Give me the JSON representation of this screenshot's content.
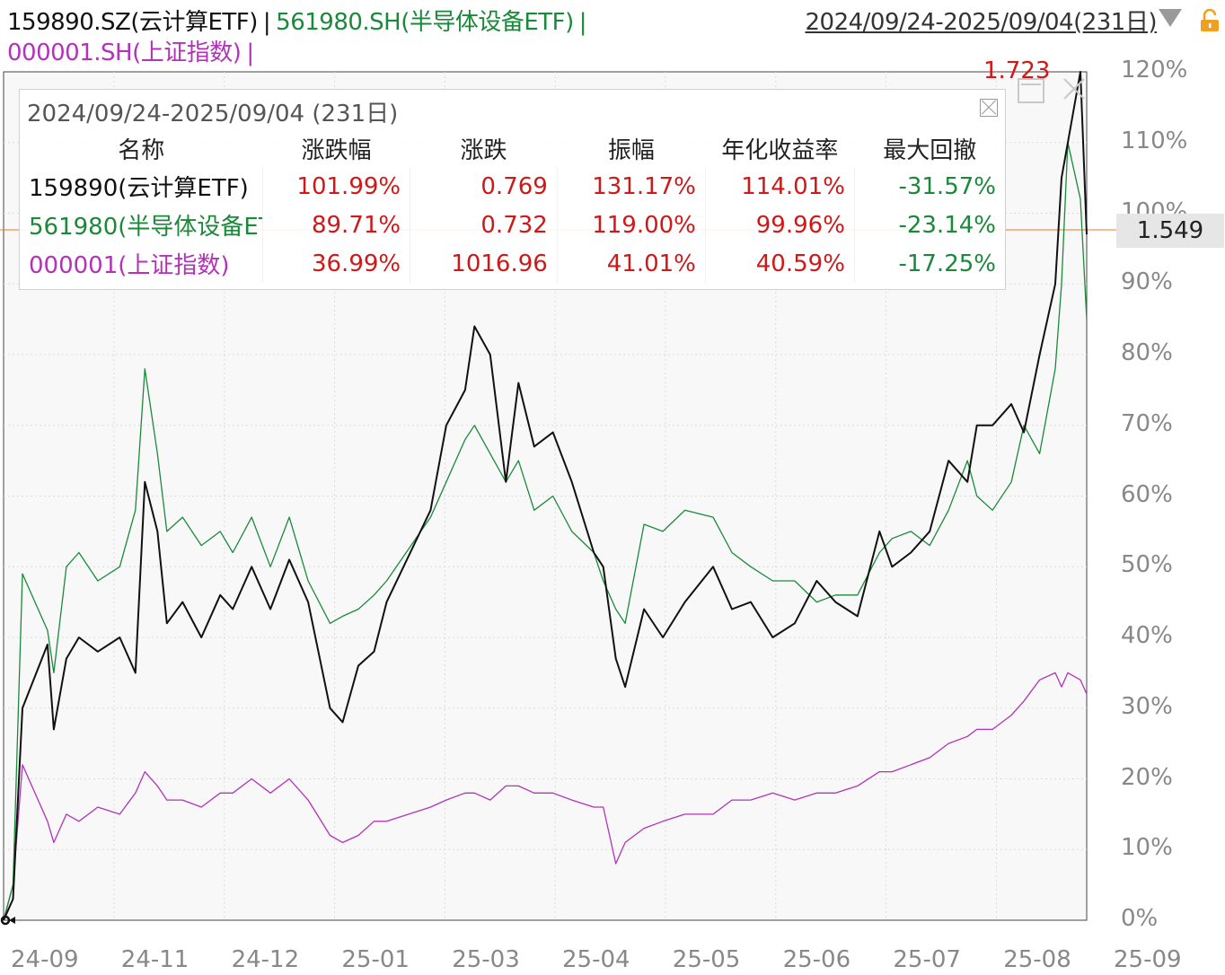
{
  "header": {
    "series_legend": [
      {
        "label": "159890.SZ(云计算ETF)",
        "color": "#111111"
      },
      {
        "label": "561980.SH(半导体设备ETF)",
        "color": "#1a8a3a"
      },
      {
        "label": "000001.SH(上证指数)",
        "color": "#b233b8"
      }
    ],
    "separator": "|",
    "date_range": "2024/09/24-2025/09/04(231日)"
  },
  "stats_panel": {
    "title": "2024/09/24-2025/09/04 (231日)",
    "columns": [
      "名称",
      "涨跌幅",
      "涨跌",
      "振幅",
      "年化收益率",
      "最大回撤"
    ],
    "rows": [
      {
        "name": "159890(云计算ETF)",
        "change_pct": "101.99%",
        "change": "0.769",
        "amplitude": "131.17%",
        "annualized": "114.01%",
        "max_drawdown": "-31.57%"
      },
      {
        "name": "561980(半导体设备ETF)",
        "change_pct": "89.71%",
        "change": "0.732",
        "amplitude": "119.00%",
        "annualized": "99.96%",
        "max_drawdown": "-23.14%"
      },
      {
        "name": "000001(上证指数)",
        "change_pct": "36.99%",
        "change": "1016.96",
        "amplitude": "41.01%",
        "annualized": "40.59%",
        "max_drawdown": "-17.25%"
      }
    ]
  },
  "markers": {
    "max_price": "1.723",
    "current_price": "1.549"
  },
  "colors": {
    "up": "#d01818",
    "down": "#1a8a3a",
    "black_series": "#111111",
    "green_series": "#1a8a3a",
    "magenta_series": "#b233b8"
  },
  "chart_data": {
    "type": "line",
    "y_tick_labels": [
      "0%",
      "10%",
      "20%",
      "30%",
      "40%",
      "50%",
      "60%",
      "70%",
      "80%",
      "90%",
      "100%",
      "110%",
      "120%"
    ],
    "x_tick_labels": [
      "24-09",
      "24-11",
      "24-12",
      "25-01",
      "25-03",
      "25-04",
      "25-05",
      "25-06",
      "25-07",
      "25-08",
      "25-09"
    ],
    "ylim": [
      0,
      120
    ],
    "x_range": [
      "2024-09-24",
      "2025-09-04"
    ],
    "grid": true,
    "reference_line_pct": 97,
    "series": [
      {
        "name": "159890.SZ(云计算ETF)",
        "color": "#111111",
        "x": [
          "2024-09-24",
          "2024-09-27",
          "2024-09-30",
          "2024-10-08",
          "2024-10-10",
          "2024-10-14",
          "2024-10-18",
          "2024-10-24",
          "2024-10-31",
          "2024-11-05",
          "2024-11-08",
          "2024-11-12",
          "2024-11-15",
          "2024-11-20",
          "2024-11-26",
          "2024-12-02",
          "2024-12-06",
          "2024-12-12",
          "2024-12-18",
          "2024-12-24",
          "2024-12-30",
          "2025-01-06",
          "2025-01-10",
          "2025-01-15",
          "2025-01-20",
          "2025-01-24",
          "2025-02-07",
          "2025-02-12",
          "2025-02-18",
          "2025-02-21",
          "2025-02-26",
          "2025-03-03",
          "2025-03-07",
          "2025-03-12",
          "2025-03-18",
          "2025-03-24",
          "2025-03-31",
          "2025-04-03",
          "2025-04-07",
          "2025-04-10",
          "2025-04-16",
          "2025-04-22",
          "2025-04-29",
          "2025-05-08",
          "2025-05-14",
          "2025-05-20",
          "2025-05-27",
          "2025-06-03",
          "2025-06-10",
          "2025-06-16",
          "2025-06-23",
          "2025-06-30",
          "2025-07-04",
          "2025-07-10",
          "2025-07-16",
          "2025-07-22",
          "2025-07-28",
          "2025-07-31",
          "2025-08-05",
          "2025-08-11",
          "2025-08-15",
          "2025-08-20",
          "2025-08-25",
          "2025-08-27",
          "2025-08-29",
          "2025-09-02",
          "2025-09-04"
        ],
        "y": [
          0,
          3,
          30,
          39,
          27,
          37,
          40,
          38,
          40,
          35,
          62,
          55,
          42,
          45,
          40,
          46,
          44,
          50,
          44,
          51,
          45,
          30,
          28,
          36,
          38,
          45,
          58,
          70,
          75,
          84,
          80,
          62,
          76,
          67,
          69,
          62,
          52,
          50,
          37,
          33,
          44,
          40,
          45,
          50,
          44,
          45,
          40,
          42,
          48,
          45,
          43,
          55,
          50,
          52,
          55,
          65,
          62,
          70,
          70,
          73,
          69,
          80,
          90,
          105,
          110,
          120,
          97
        ]
      },
      {
        "name": "561980.SH(半导体设备ETF)",
        "color": "#1a8a3a",
        "x": [
          "2024-09-24",
          "2024-09-27",
          "2024-09-30",
          "2024-10-08",
          "2024-10-10",
          "2024-10-14",
          "2024-10-18",
          "2024-10-24",
          "2024-10-31",
          "2024-11-05",
          "2024-11-08",
          "2024-11-12",
          "2024-11-15",
          "2024-11-20",
          "2024-11-26",
          "2024-12-02",
          "2024-12-06",
          "2024-12-12",
          "2024-12-18",
          "2024-12-24",
          "2024-12-30",
          "2025-01-06",
          "2025-01-10",
          "2025-01-15",
          "2025-01-20",
          "2025-01-24",
          "2025-02-07",
          "2025-02-12",
          "2025-02-18",
          "2025-02-21",
          "2025-02-26",
          "2025-03-03",
          "2025-03-07",
          "2025-03-12",
          "2025-03-18",
          "2025-03-24",
          "2025-03-31",
          "2025-04-03",
          "2025-04-07",
          "2025-04-10",
          "2025-04-16",
          "2025-04-22",
          "2025-04-29",
          "2025-05-08",
          "2025-05-14",
          "2025-05-20",
          "2025-05-27",
          "2025-06-03",
          "2025-06-10",
          "2025-06-16",
          "2025-06-23",
          "2025-06-30",
          "2025-07-04",
          "2025-07-10",
          "2025-07-16",
          "2025-07-22",
          "2025-07-28",
          "2025-07-31",
          "2025-08-05",
          "2025-08-11",
          "2025-08-15",
          "2025-08-20",
          "2025-08-25",
          "2025-08-27",
          "2025-08-29",
          "2025-09-02",
          "2025-09-04"
        ],
        "y": [
          0,
          5,
          49,
          41,
          35,
          50,
          52,
          48,
          50,
          58,
          78,
          66,
          55,
          57,
          53,
          55,
          52,
          57,
          50,
          57,
          48,
          42,
          43,
          44,
          46,
          48,
          57,
          62,
          68,
          70,
          66,
          62,
          65,
          58,
          60,
          55,
          52,
          48,
          44,
          42,
          56,
          55,
          58,
          57,
          52,
          50,
          48,
          48,
          45,
          46,
          46,
          52,
          54,
          55,
          53,
          58,
          65,
          60,
          58,
          62,
          70,
          66,
          78,
          90,
          110,
          102,
          85
        ]
      },
      {
        "name": "000001.SH(上证指数)",
        "color": "#b233b8",
        "x": [
          "2024-09-24",
          "2024-09-27",
          "2024-09-30",
          "2024-10-08",
          "2024-10-10",
          "2024-10-14",
          "2024-10-18",
          "2024-10-24",
          "2024-10-31",
          "2024-11-05",
          "2024-11-08",
          "2024-11-12",
          "2024-11-15",
          "2024-11-20",
          "2024-11-26",
          "2024-12-02",
          "2024-12-06",
          "2024-12-12",
          "2024-12-18",
          "2024-12-24",
          "2024-12-30",
          "2025-01-06",
          "2025-01-10",
          "2025-01-15",
          "2025-01-20",
          "2025-01-24",
          "2025-02-07",
          "2025-02-12",
          "2025-02-18",
          "2025-02-21",
          "2025-02-26",
          "2025-03-03",
          "2025-03-07",
          "2025-03-12",
          "2025-03-18",
          "2025-03-24",
          "2025-03-31",
          "2025-04-03",
          "2025-04-07",
          "2025-04-10",
          "2025-04-16",
          "2025-04-22",
          "2025-04-29",
          "2025-05-08",
          "2025-05-14",
          "2025-05-20",
          "2025-05-27",
          "2025-06-03",
          "2025-06-10",
          "2025-06-16",
          "2025-06-23",
          "2025-06-30",
          "2025-07-04",
          "2025-07-10",
          "2025-07-16",
          "2025-07-22",
          "2025-07-28",
          "2025-07-31",
          "2025-08-05",
          "2025-08-11",
          "2025-08-15",
          "2025-08-20",
          "2025-08-25",
          "2025-08-27",
          "2025-08-29",
          "2025-09-02",
          "2025-09-04"
        ],
        "y": [
          0,
          5,
          22,
          14,
          11,
          15,
          14,
          16,
          15,
          18,
          21,
          19,
          17,
          17,
          16,
          18,
          18,
          20,
          18,
          20,
          17,
          12,
          11,
          12,
          14,
          14,
          16,
          17,
          18,
          18,
          17,
          19,
          19,
          18,
          18,
          17,
          16,
          16,
          8,
          11,
          13,
          14,
          15,
          15,
          17,
          17,
          18,
          17,
          18,
          18,
          19,
          21,
          21,
          22,
          23,
          25,
          26,
          27,
          27,
          29,
          31,
          34,
          35,
          33,
          35,
          34,
          32
        ]
      }
    ]
  }
}
